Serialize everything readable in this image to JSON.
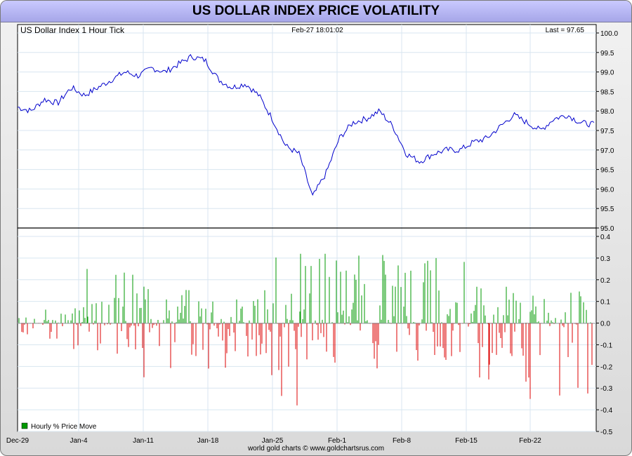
{
  "title": "US DOLLAR INDEX PRICE VOLATILITY",
  "footer": "world gold charts © www.goldchartsrus.com",
  "colors": {
    "price_line": "#0000cc",
    "positive": "#009900",
    "negative": "#dd0000",
    "grid": "#d8e6f0"
  },
  "chart_data": [
    {
      "type": "line",
      "panel": "price",
      "header_left": "US Dollar Index 1 Hour Tick",
      "header_center": "Feb-27  18:01:02",
      "header_right": "Last = 97.65",
      "ylim": [
        95.0,
        100.0
      ],
      "y_ticks": [
        "100.0",
        "99.5",
        "99.0",
        "98.5",
        "98.0",
        "97.5",
        "97.0",
        "96.5",
        "96.0",
        "95.5",
        "95.0"
      ],
      "x_tick_labels": [
        "Dec-29",
        "Jan-4",
        "Jan-11",
        "Jan-18",
        "Jan-25",
        "Feb-1",
        "Feb-8",
        "Feb-15",
        "Feb-22"
      ],
      "x": [
        "Dec-29",
        "Dec-30",
        "Dec-31",
        "Jan-2",
        "Jan-4",
        "Jan-5",
        "Jan-6",
        "Jan-7",
        "Jan-8",
        "Jan-11",
        "Jan-12",
        "Jan-13",
        "Jan-14",
        "Jan-15",
        "Jan-18",
        "Jan-19",
        "Jan-20",
        "Jan-21",
        "Jan-22",
        "Jan-25",
        "Jan-26",
        "Jan-27",
        "Jan-28",
        "Jan-29",
        "Feb-1",
        "Feb-2",
        "Feb-3",
        "Feb-4",
        "Feb-5",
        "Feb-8",
        "Feb-9",
        "Feb-10",
        "Feb-11",
        "Feb-12",
        "Feb-15",
        "Feb-16",
        "Feb-17",
        "Feb-18",
        "Feb-19",
        "Feb-22",
        "Feb-23",
        "Feb-24",
        "Feb-25",
        "Feb-26"
      ],
      "values": [
        98.1,
        98.0,
        98.3,
        98.2,
        98.6,
        98.4,
        98.6,
        98.8,
        99.0,
        98.9,
        99.1,
        99.0,
        99.2,
        99.4,
        99.3,
        98.8,
        98.6,
        98.7,
        98.4,
        97.8,
        97.1,
        96.9,
        95.8,
        96.4,
        97.3,
        97.7,
        97.8,
        98.0,
        97.6,
        96.9,
        96.7,
        96.9,
        97.0,
        97.0,
        97.2,
        97.3,
        97.6,
        97.9,
        97.7,
        97.5,
        97.8,
        97.9,
        97.7,
        97.65
      ],
      "grid": true
    },
    {
      "type": "bar",
      "panel": "volatility",
      "legend": "Hourly % Price Move",
      "legend_position": "bottom-left",
      "ylim": [
        -0.5,
        0.4
      ],
      "y_ticks": [
        "0.4",
        "0.3",
        "0.2",
        "0.1",
        "0.0",
        "-0.1",
        "-0.2",
        "-0.3",
        "-0.4",
        "-0.5"
      ],
      "x": [
        "Dec-29",
        "Jan-4",
        "Jan-11",
        "Jan-18",
        "Jan-25",
        "Feb-1",
        "Feb-8",
        "Feb-15",
        "Feb-22"
      ],
      "max_up": [
        0.08,
        0.25,
        0.16,
        0.18,
        0.32,
        0.32,
        0.3,
        0.18,
        0.15
      ],
      "max_down": [
        -0.13,
        -0.19,
        -0.26,
        -0.22,
        -0.38,
        -0.22,
        -0.2,
        -0.26,
        -0.35
      ],
      "grid": true
    }
  ]
}
